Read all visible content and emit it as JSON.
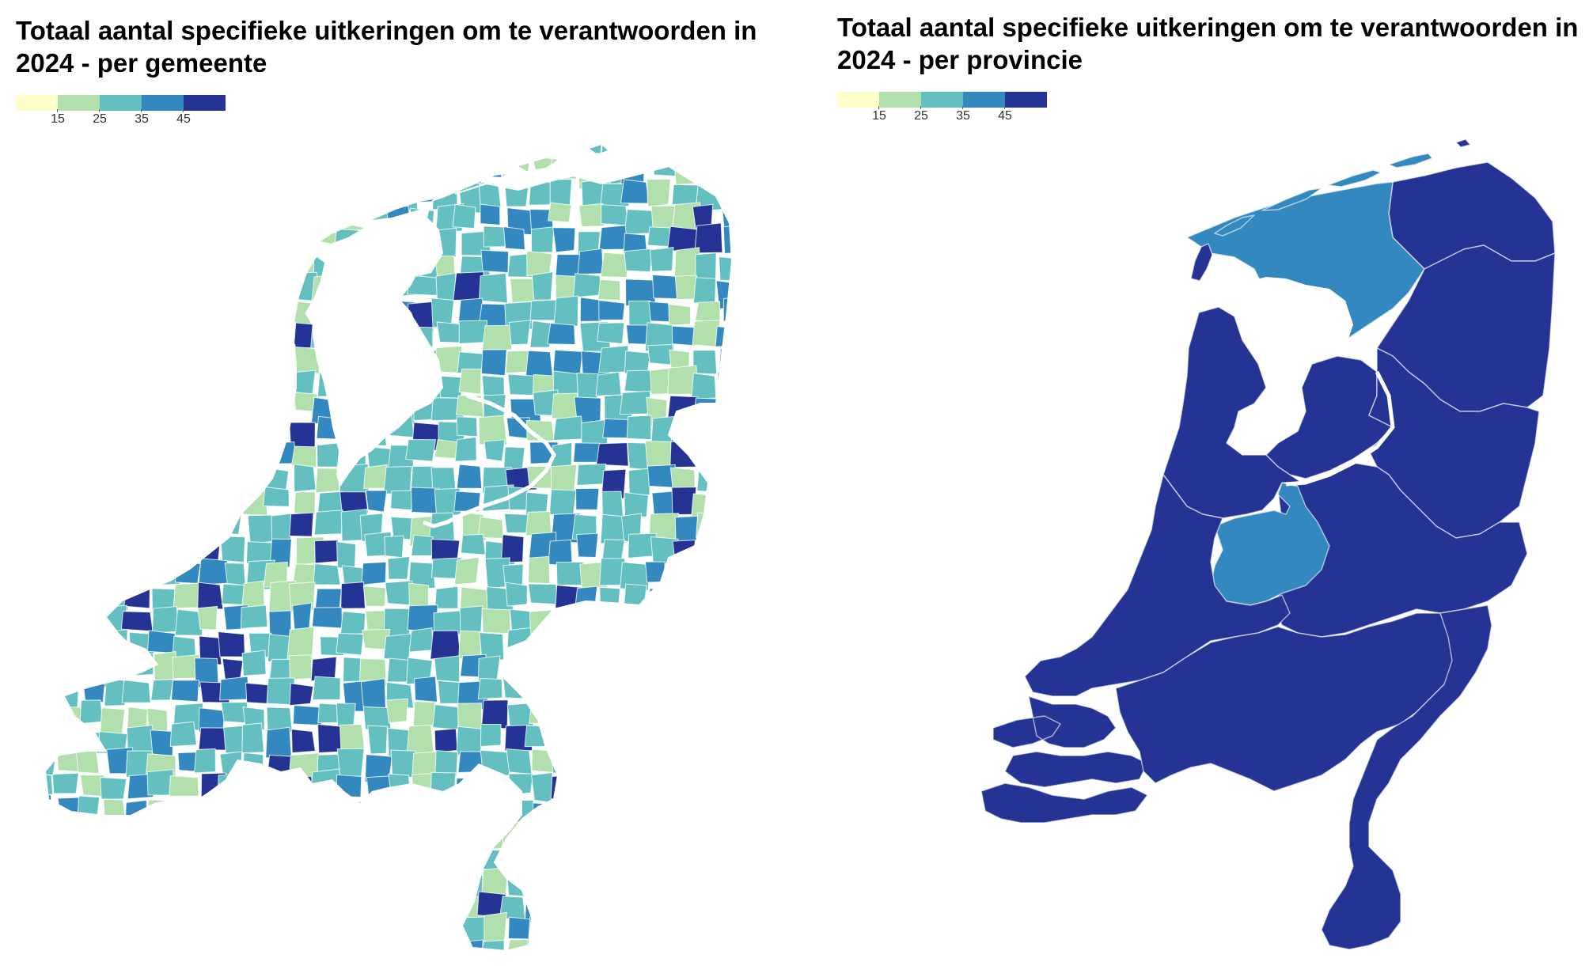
{
  "colors": {
    "c1": "#ffffcc",
    "c2": "#b2e0ac",
    "c3": "#63bfc0",
    "c4": "#3389bf",
    "c5": "#253494",
    "border": "#ffffff"
  },
  "legend": {
    "ticks": [
      "15",
      "25",
      "35",
      "45"
    ]
  },
  "maps": [
    {
      "title": "Totaal aantal specifieke uitkeringen om te verantwoorden in 2024 - per gemeente",
      "level": "gemeente"
    },
    {
      "title": "Totaal aantal specifieke uitkeringen om te verantwoorden in 2024 - per provincie",
      "level": "provincie",
      "provinces": [
        {
          "name": "Groningen",
          "class": 5
        },
        {
          "name": "Friesland",
          "class": 4
        },
        {
          "name": "Drenthe",
          "class": 5
        },
        {
          "name": "Overijssel",
          "class": 5
        },
        {
          "name": "Flevoland",
          "class": 5
        },
        {
          "name": "Gelderland",
          "class": 5
        },
        {
          "name": "Utrecht",
          "class": 4
        },
        {
          "name": "Noord-Holland",
          "class": 5
        },
        {
          "name": "Zuid-Holland",
          "class": 5
        },
        {
          "name": "Zeeland",
          "class": 5
        },
        {
          "name": "Noord-Brabant",
          "class": 5
        },
        {
          "name": "Limburg",
          "class": 5
        }
      ]
    }
  ]
}
